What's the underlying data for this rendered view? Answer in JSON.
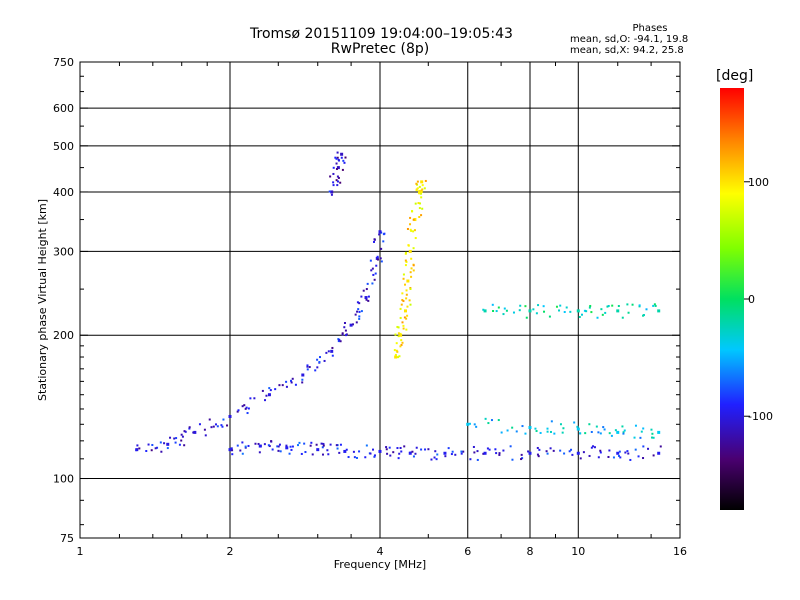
{
  "chart_data": {
    "type": "scatter",
    "title": "Tromsø 20151109 19:04:00–19:05:43",
    "subtitle": "RwPretec (8p)",
    "xlabel": "Frequency [MHz]",
    "ylabel": "Stationary phase Virtual Height [km]",
    "xscale": "log",
    "yscale": "log",
    "xlim": [
      1,
      16
    ],
    "ylim": [
      75,
      750
    ],
    "x_ticks": [
      1,
      2,
      4,
      6,
      8,
      10,
      16
    ],
    "x_tick_labels": [
      "1",
      "2",
      "4",
      "6",
      "8",
      "10",
      "16"
    ],
    "x_grid": [
      2,
      4,
      6,
      8,
      10
    ],
    "y_ticks": [
      75,
      100,
      200,
      300,
      400,
      500,
      600,
      750
    ],
    "y_tick_labels": [
      "75",
      "100",
      "200",
      "300",
      "400",
      "500",
      "600",
      "750"
    ],
    "y_grid": [
      100,
      200,
      300,
      400,
      500,
      600
    ],
    "grid": true,
    "colorbar": {
      "label": "[deg]",
      "range": [
        -180,
        180
      ],
      "ticks": [
        100,
        0,
        -100
      ],
      "tick_labels": [
        "100",
        "0",
        "-100"
      ]
    },
    "phases_box": {
      "title": "Phases",
      "line_o": "mean, sd,O: -94.1, 19.8",
      "line_x": "mean, sd,X:  94.2, 25.8"
    },
    "traces": [
      {
        "name": "",
        "mode": "O",
        "phase_deg": -95,
        "points": [
          [
            2.0,
            115
          ],
          [
            2.3,
            117
          ],
          [
            2.6,
            116
          ],
          [
            3.0,
            115
          ],
          [
            3.4,
            114
          ],
          [
            4.0,
            114
          ],
          [
            4.6,
            113
          ],
          [
            5.4,
            113
          ],
          [
            6.5,
            113
          ],
          [
            8.0,
            113
          ],
          [
            10.0,
            113
          ],
          [
            12.0,
            113
          ],
          [
            14.5,
            113
          ]
        ]
      },
      {
        "name": "",
        "mode": "O",
        "phase_deg": -100,
        "points": [
          [
            1.3,
            115
          ],
          [
            1.5,
            118
          ],
          [
            1.7,
            125
          ],
          [
            2.0,
            135
          ],
          [
            2.4,
            150
          ],
          [
            2.8,
            165
          ],
          [
            3.2,
            185
          ],
          [
            3.5,
            210
          ],
          [
            3.75,
            240
          ],
          [
            3.95,
            290
          ],
          [
            4.0,
            330
          ]
        ]
      },
      {
        "name": "",
        "mode": "O",
        "phase_deg": -110,
        "points": [
          [
            3.2,
            400
          ],
          [
            3.3,
            450
          ],
          [
            3.35,
            480
          ]
        ]
      },
      {
        "name": "",
        "mode": "X",
        "phase_deg": 100,
        "points": [
          [
            4.3,
            180
          ],
          [
            4.4,
            200
          ],
          [
            4.5,
            225
          ],
          [
            4.55,
            260
          ],
          [
            4.6,
            300
          ],
          [
            4.7,
            350
          ],
          [
            4.8,
            400
          ],
          [
            4.85,
            420
          ]
        ]
      },
      {
        "name": "",
        "mode": "mixed",
        "phase_deg": -20,
        "points": [
          [
            6.5,
            225
          ],
          [
            8.0,
            225
          ],
          [
            10.0,
            225
          ],
          [
            12.0,
            225
          ],
          [
            14.5,
            225
          ]
        ]
      },
      {
        "name": "",
        "mode": "mixed",
        "phase_deg": -40,
        "points": [
          [
            6.0,
            130
          ],
          [
            8.0,
            128
          ],
          [
            10.0,
            127
          ],
          [
            12.0,
            125
          ],
          [
            14.5,
            125
          ]
        ]
      }
    ]
  }
}
